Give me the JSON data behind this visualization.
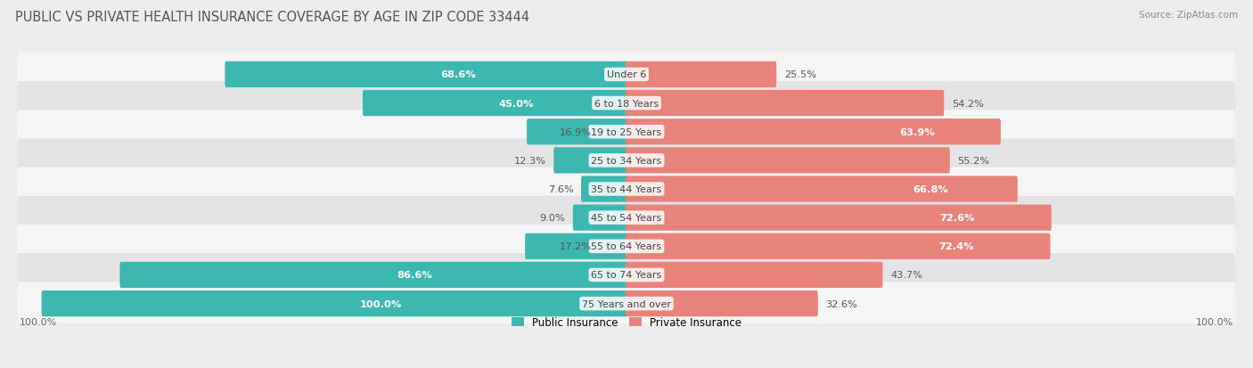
{
  "title": "PUBLIC VS PRIVATE HEALTH INSURANCE COVERAGE BY AGE IN ZIP CODE 33444",
  "source": "Source: ZipAtlas.com",
  "categories": [
    "Under 6",
    "6 to 18 Years",
    "19 to 25 Years",
    "25 to 34 Years",
    "35 to 44 Years",
    "45 to 54 Years",
    "55 to 64 Years",
    "65 to 74 Years",
    "75 Years and over"
  ],
  "public_values": [
    68.6,
    45.0,
    16.9,
    12.3,
    7.6,
    9.0,
    17.2,
    86.6,
    100.0
  ],
  "private_values": [
    25.5,
    54.2,
    63.9,
    55.2,
    66.8,
    72.6,
    72.4,
    43.7,
    32.6
  ],
  "public_color": "#3db8b0",
  "private_color": "#e8837c",
  "private_color_light": "#f0aba6",
  "public_label": "Public Insurance",
  "private_label": "Private Insurance",
  "bg_color": "#ededee",
  "row_bg_even": "#f5f5f6",
  "row_bg_odd": "#e4e4e6",
  "title_fontsize": 10.5,
  "value_fontsize": 8.2,
  "category_fontsize": 8.0,
  "source_fontsize": 7.5,
  "legend_fontsize": 8.5
}
